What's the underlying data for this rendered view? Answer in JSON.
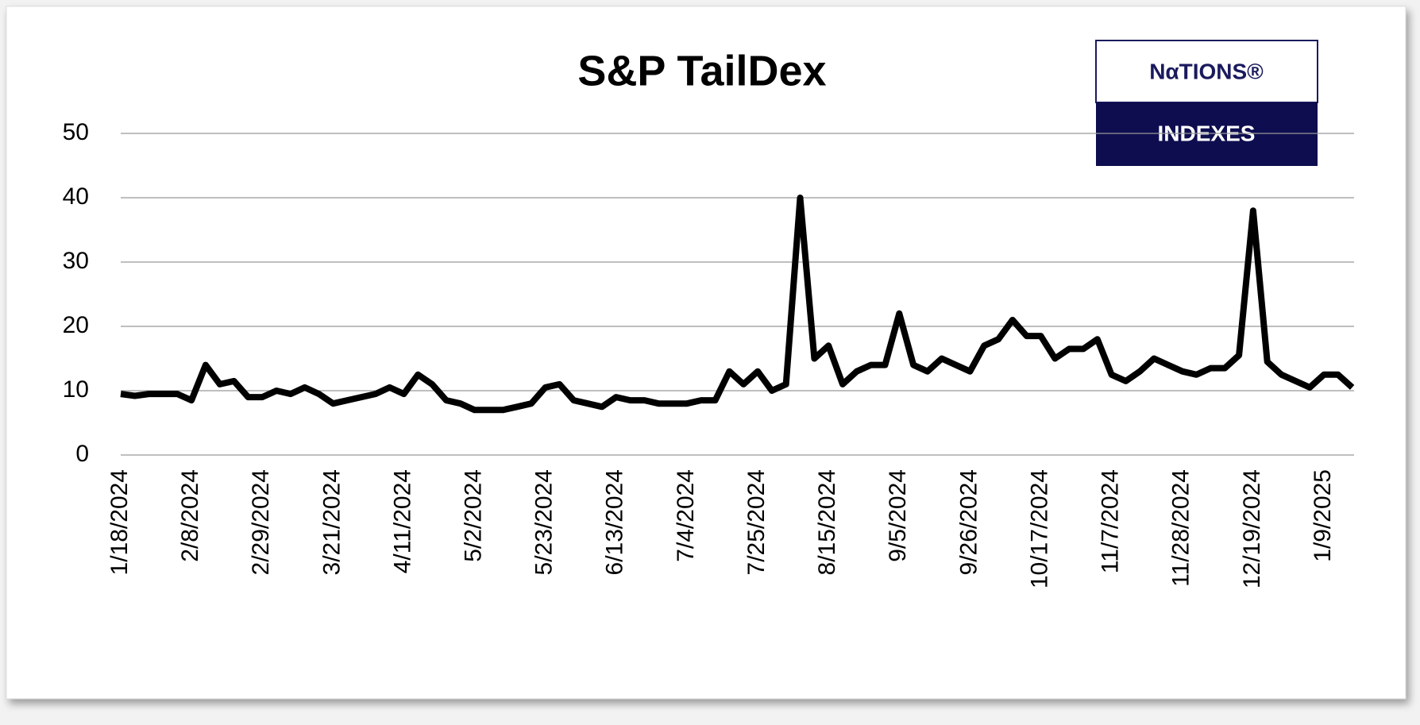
{
  "chart_data": {
    "type": "line",
    "title": "S&P  TailDex",
    "logo": {
      "top": "NαTIONS®",
      "bottom": "INDEXES"
    },
    "categories": [
      "1/18/2024",
      null,
      null,
      null,
      null,
      "2/8/2024",
      null,
      null,
      null,
      null,
      "2/29/2024",
      null,
      null,
      null,
      null,
      "3/21/2024",
      null,
      null,
      null,
      null,
      "4/11/2024",
      null,
      null,
      null,
      null,
      "5/2/2024",
      null,
      null,
      null,
      null,
      "5/23/2024",
      null,
      null,
      null,
      null,
      "6/13/2024",
      null,
      null,
      null,
      null,
      "7/4/2024",
      null,
      null,
      null,
      null,
      "7/25/2024",
      null,
      null,
      null,
      null,
      "8/15/2024",
      null,
      null,
      null,
      null,
      "9/5/2024",
      null,
      null,
      null,
      null,
      "9/26/2024",
      null,
      null,
      null,
      null,
      "10/17/2024",
      null,
      null,
      null,
      null,
      "11/7/2024",
      null,
      null,
      null,
      null,
      "11/28/2024",
      null,
      null,
      null,
      null,
      "12/19/2024",
      null,
      null,
      null,
      null,
      "1/9/2025",
      null,
      null
    ],
    "series": [
      {
        "name": "S&P TailDex",
        "color": "#000000",
        "values": [
          9.5,
          9.2,
          9.5,
          9.5,
          9.5,
          8.5,
          14,
          11,
          11.5,
          9,
          9,
          10,
          9.5,
          10.5,
          9.5,
          8,
          8.5,
          9,
          9.5,
          10.5,
          9.5,
          12.5,
          11,
          8.5,
          8,
          7,
          7,
          7,
          7.5,
          8,
          10.5,
          11,
          8.5,
          8,
          7.5,
          9,
          8.5,
          8.5,
          8,
          8,
          8,
          8.5,
          8.5,
          13,
          11,
          13,
          10,
          11,
          40,
          15,
          17,
          11,
          13,
          14,
          14,
          22,
          14,
          13,
          15,
          14,
          13,
          17,
          18,
          21,
          18.5,
          18.5,
          15,
          16.5,
          16.5,
          18,
          12.5,
          11.5,
          13,
          15,
          14,
          13,
          12.5,
          13.5,
          13.5,
          15.5,
          38,
          14.5,
          12.5,
          11.5,
          10.5,
          12.5,
          12.5,
          10.5
        ]
      }
    ],
    "ylim": [
      0,
      50
    ],
    "yticks": [
      0,
      10,
      20,
      30,
      40,
      50
    ],
    "grid": true
  }
}
